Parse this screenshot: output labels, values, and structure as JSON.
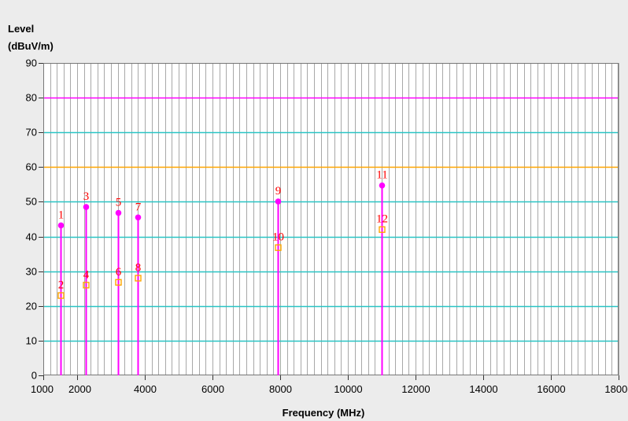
{
  "chart_data": {
    "type": "scatter",
    "title": "",
    "ylabel_line1": "Level",
    "ylabel_line2": "(dBuV/m)",
    "xlabel": "Frequency (MHz)",
    "xlim": [
      1000,
      18000
    ],
    "ylim": [
      0,
      90
    ],
    "x_ticks": [
      1000,
      2000,
      4000,
      6000,
      8000,
      10000,
      12000,
      14000,
      16000,
      18000
    ],
    "x_tick_labels": [
      "1000",
      "2000",
      "4000",
      "6000",
      "8000",
      "10000",
      "12000",
      "14000",
      "16000",
      "18000"
    ],
    "y_ticks": [
      0,
      10,
      20,
      30,
      40,
      50,
      60,
      70,
      80,
      90
    ],
    "y_tick_labels": [
      "0",
      "10",
      "20",
      "30",
      "40",
      "50",
      "60",
      "70",
      "80",
      "90"
    ],
    "x_minor_step": 200,
    "limit_lines": [
      {
        "value": 80,
        "color": "#ff00ff"
      },
      {
        "value": 60,
        "color": "#ffa500"
      }
    ],
    "horizontal_grid_color": "#29c4c4",
    "vertical_grid_color": "#a8a8a8",
    "plot_background": "#ffffff",
    "marker_label_color": "#ff0000",
    "series": [
      {
        "marker": "circle",
        "color": "#ff00ff",
        "stem": true,
        "points": [
          {
            "label": "1",
            "x": 1500,
            "y": 43.2
          },
          {
            "label": "3",
            "x": 2250,
            "y": 48.5
          },
          {
            "label": "5",
            "x": 3200,
            "y": 46.8
          },
          {
            "label": "7",
            "x": 3800,
            "y": 45.5
          },
          {
            "label": "9",
            "x": 7920,
            "y": 50.1
          },
          {
            "label": "11",
            "x": 11000,
            "y": 54.7
          }
        ]
      },
      {
        "marker": "square",
        "color": "#ffa500",
        "stem": false,
        "points": [
          {
            "label": "2",
            "x": 1500,
            "y": 23.0
          },
          {
            "label": "4",
            "x": 2250,
            "y": 26.0
          },
          {
            "label": "6",
            "x": 3200,
            "y": 26.8
          },
          {
            "label": "8",
            "x": 3800,
            "y": 28.0
          },
          {
            "label": "10",
            "x": 7920,
            "y": 36.8
          },
          {
            "label": "12",
            "x": 11000,
            "y": 42.0
          }
        ]
      }
    ]
  }
}
